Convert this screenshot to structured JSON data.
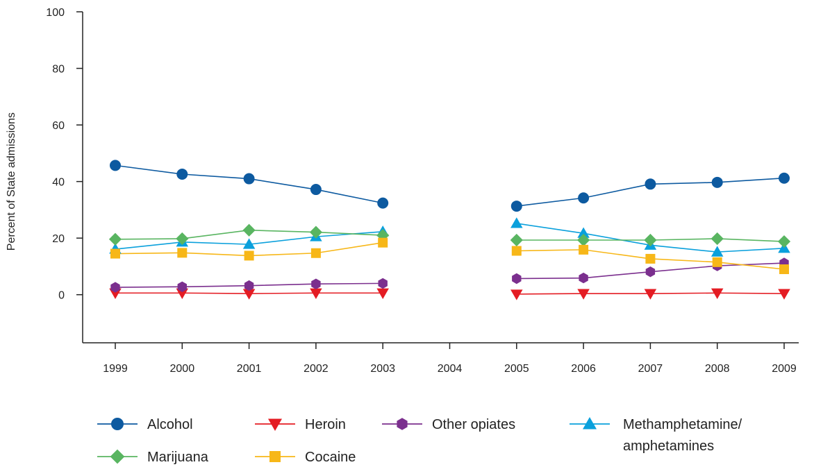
{
  "chart_data": {
    "type": "line",
    "title": "",
    "xlabel": "",
    "ylabel": "Percent of State admissions",
    "categories": [
      "1999",
      "2000",
      "2001",
      "2002",
      "2003",
      "2004",
      "2005",
      "2006",
      "2007",
      "2008",
      "2009"
    ],
    "ylim": [
      -17,
      100
    ],
    "yticks": [
      "100",
      "80",
      "60",
      "40",
      "20",
      "0"
    ],
    "grid": false,
    "legend_position": "bottom",
    "series": [
      {
        "name": "Alcohol",
        "color": "#0d5aa0",
        "marker": "circle",
        "values": [
          45.7,
          42.6,
          41.0,
          37.2,
          32.4,
          null,
          31.3,
          34.2,
          39.1,
          39.7,
          41.2
        ]
      },
      {
        "name": "Heroin",
        "color": "#e41c23",
        "marker": "triangle-down",
        "values": [
          0.6,
          0.6,
          0.4,
          0.6,
          0.6,
          null,
          0.2,
          0.4,
          0.4,
          0.6,
          0.4
        ]
      },
      {
        "name": "Other opiates",
        "color": "#7b2f8e",
        "marker": "hexagon",
        "values": [
          2.6,
          2.8,
          3.2,
          3.8,
          4.0,
          null,
          5.7,
          5.9,
          8.1,
          10.2,
          11.2
        ]
      },
      {
        "name": "Methamphetamine/ amphetamines",
        "label_lines": [
          "Methamphetamine/",
          "amphetamines"
        ],
        "color": "#0aa0dc",
        "marker": "triangle-up",
        "values": [
          16.1,
          18.6,
          17.8,
          20.5,
          22.3,
          null,
          25.2,
          21.7,
          17.5,
          15.1,
          16.4
        ]
      },
      {
        "name": "Marijuana",
        "color": "#59b561",
        "marker": "diamond",
        "values": [
          19.6,
          19.8,
          22.8,
          22.1,
          21.0,
          null,
          19.3,
          19.3,
          19.3,
          19.8,
          18.8
        ]
      },
      {
        "name": "Cocaine",
        "color": "#f7b718",
        "marker": "square",
        "values": [
          14.5,
          14.8,
          13.8,
          14.7,
          18.4,
          null,
          15.5,
          15.9,
          12.7,
          11.5,
          9.0
        ]
      }
    ]
  }
}
